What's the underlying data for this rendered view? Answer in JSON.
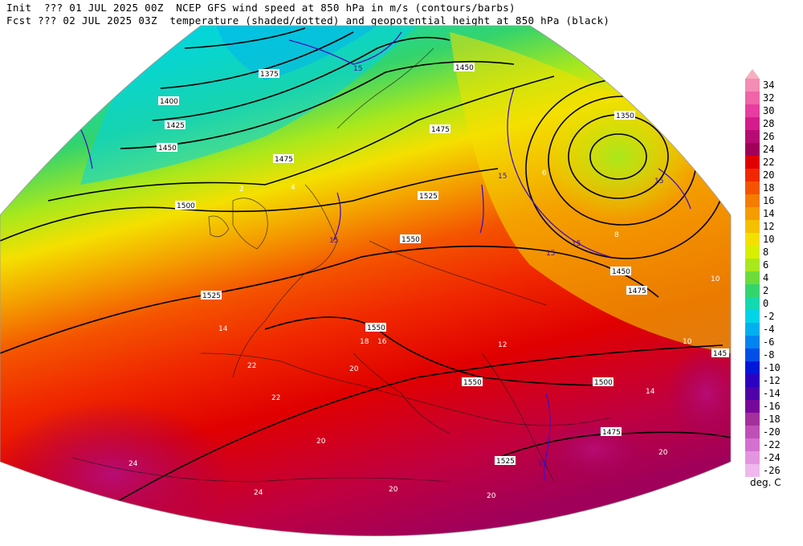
{
  "header": {
    "line1": "Init  ??? 01 JUL 2025 00Z  NCEP GFS wind speed at 850 hPa in m/s (contours/barbs)",
    "line2": "Fcst ??? 02 JUL 2025 03Z  temperature (shaded/dotted) and geopotential height at 850 hPa (black)"
  },
  "legend": {
    "unit": "deg. C",
    "entries": [
      {
        "label": "34",
        "color": "#f48cb4"
      },
      {
        "label": "32",
        "color": "#f064a8"
      },
      {
        "label": "30",
        "color": "#e83ca0"
      },
      {
        "label": "28",
        "color": "#d41c8c"
      },
      {
        "label": "26",
        "color": "#b80c74"
      },
      {
        "label": "24",
        "color": "#a0005a"
      },
      {
        "label": "22",
        "color": "#e00000"
      },
      {
        "label": "20",
        "color": "#f02800"
      },
      {
        "label": "18",
        "color": "#f45400"
      },
      {
        "label": "16",
        "color": "#f47c00"
      },
      {
        "label": "14",
        "color": "#f49c00"
      },
      {
        "label": "12",
        "color": "#f4c000"
      },
      {
        "label": "10",
        "color": "#f4e000"
      },
      {
        "label": "8",
        "color": "#d8f000"
      },
      {
        "label": "6",
        "color": "#a8e81c"
      },
      {
        "label": "4",
        "color": "#6cdc3c"
      },
      {
        "label": "2",
        "color": "#34d46c"
      },
      {
        "label": "0",
        "color": "#14d8b0"
      },
      {
        "label": "-2",
        "color": "#00d4e8"
      },
      {
        "label": "-4",
        "color": "#00b0f0"
      },
      {
        "label": "-6",
        "color": "#0084f0"
      },
      {
        "label": "-8",
        "color": "#0050e8"
      },
      {
        "label": "-10",
        "color": "#0018d8"
      },
      {
        "label": "-12",
        "color": "#2c00c0"
      },
      {
        "label": "-14",
        "color": "#5000a8"
      },
      {
        "label": "-16",
        "color": "#78089c"
      },
      {
        "label": "-18",
        "color": "#a4309c"
      },
      {
        "label": "-20",
        "color": "#c050b8"
      },
      {
        "label": "-22",
        "color": "#d470d0"
      },
      {
        "label": "-24",
        "color": "#e494e0"
      },
      {
        "label": "-26",
        "color": "#f0b8ec"
      }
    ]
  },
  "map": {
    "height_labels": [
      "1375",
      "1400",
      "1425",
      "1450",
      "1475",
      "1500",
      "1525",
      "1550",
      "1350",
      "145"
    ],
    "wind_labels": [
      "15"
    ],
    "temp_labels": [
      "22",
      "20",
      "18",
      "16",
      "14",
      "12",
      "10",
      "8",
      "6",
      "4",
      "2",
      "24"
    ]
  }
}
